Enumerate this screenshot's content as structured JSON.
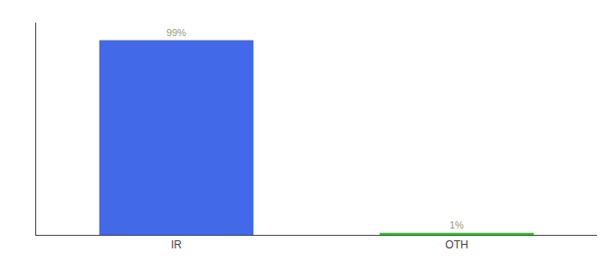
{
  "chart_data": {
    "type": "bar",
    "categories": [
      "IR",
      "OTH"
    ],
    "values": [
      99,
      1
    ],
    "value_labels": [
      "99%",
      "1%"
    ],
    "colors": [
      "#4169e8",
      "#22cc22"
    ],
    "ylim": [
      0,
      108
    ],
    "yticks": [],
    "grid": false,
    "data_labels": true,
    "tick_labels": "x"
  }
}
